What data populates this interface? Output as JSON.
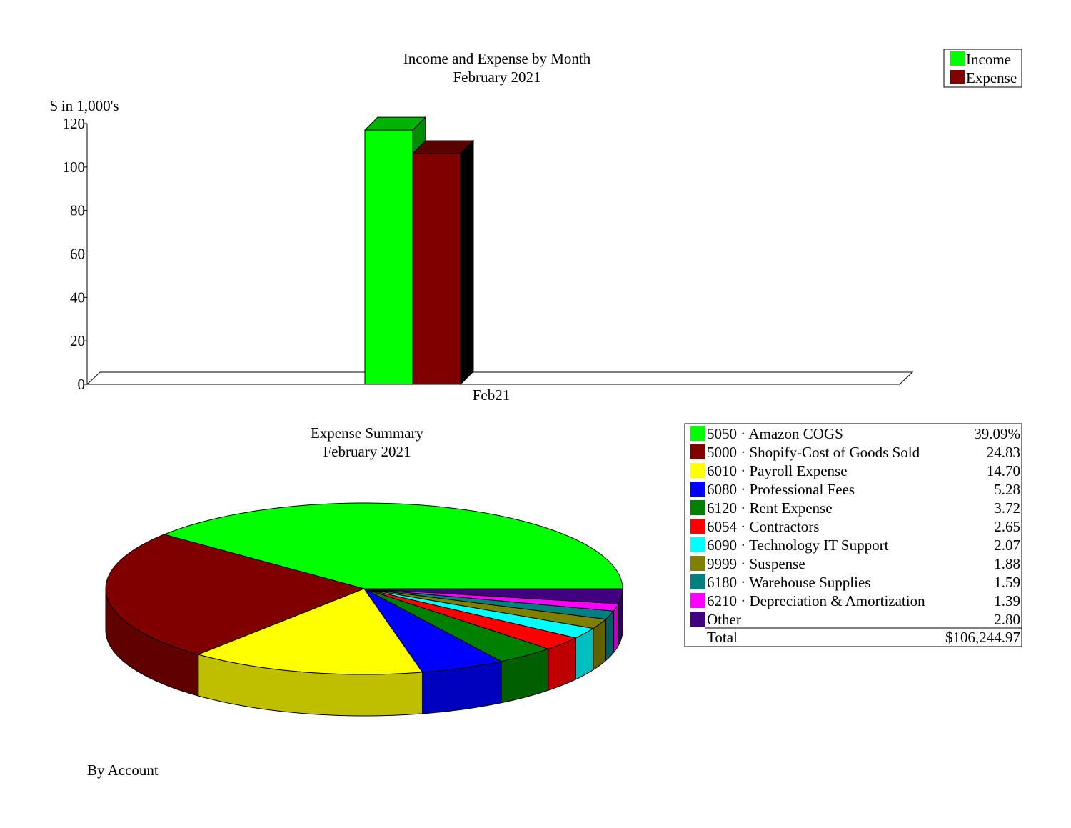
{
  "bar_chart": {
    "title": "Income and Expense by Month",
    "subtitle": "February 2021",
    "y_axis_label": "$ in 1,000's",
    "legend": [
      {
        "label": "Income",
        "color": "#00ff00"
      },
      {
        "label": "Expense",
        "color": "#800000"
      }
    ]
  },
  "pie_chart": {
    "title": "Expense Summary",
    "subtitle": "February 2021",
    "footer": "By Account",
    "legend_total_label": "Total",
    "legend_total_value": "$106,244.97"
  },
  "chart_data": [
    {
      "type": "bar",
      "title": "Income and Expense by Month",
      "subtitle": "February 2021",
      "ylabel": "$ in 1,000's",
      "xlabel": "",
      "categories": [
        "Feb21"
      ],
      "series": [
        {
          "name": "Income",
          "values": [
            117
          ],
          "color": "#00ff00"
        },
        {
          "name": "Expense",
          "values": [
            106.2
          ],
          "color": "#800000"
        }
      ],
      "ylim": [
        0,
        120
      ],
      "yticks": [
        0,
        20,
        40,
        60,
        80,
        100,
        120
      ],
      "legend_position": "top-right",
      "grid": false,
      "style": "3d"
    },
    {
      "type": "pie",
      "title": "Expense Summary",
      "subtitle": "February 2021",
      "style": "3d",
      "legend_position": "right",
      "slices": [
        {
          "label": "5050 · Amazon COGS",
          "value": 39.09,
          "display": "39.09%",
          "color": "#00ff00"
        },
        {
          "label": "5000 · Shopify-Cost of Goods Sold",
          "value": 24.83,
          "display": "24.83",
          "color": "#800000"
        },
        {
          "label": "6010 · Payroll Expense",
          "value": 14.7,
          "display": "14.70",
          "color": "#ffff00"
        },
        {
          "label": "6080 · Professional Fees",
          "value": 5.28,
          "display": "5.28",
          "color": "#0000ff"
        },
        {
          "label": "6120 · Rent Expense",
          "value": 3.72,
          "display": "3.72",
          "color": "#008000"
        },
        {
          "label": "6054 · Contractors",
          "value": 2.65,
          "display": "2.65",
          "color": "#ff0000"
        },
        {
          "label": "6090 · Technology IT Support",
          "value": 2.07,
          "display": "2.07",
          "color": "#00ffff"
        },
        {
          "label": "9999 · Suspense",
          "value": 1.88,
          "display": "1.88",
          "color": "#808000"
        },
        {
          "label": "6180 · Warehouse Supplies",
          "value": 1.59,
          "display": "1.59",
          "color": "#008080"
        },
        {
          "label": "6210 · Depreciation & Amortization",
          "value": 1.39,
          "display": "1.39",
          "color": "#ff00ff"
        },
        {
          "label": "Other",
          "value": 2.8,
          "display": "2.80",
          "color": "#400080"
        }
      ],
      "total_label": "Total",
      "total": "$106,244.97"
    }
  ]
}
